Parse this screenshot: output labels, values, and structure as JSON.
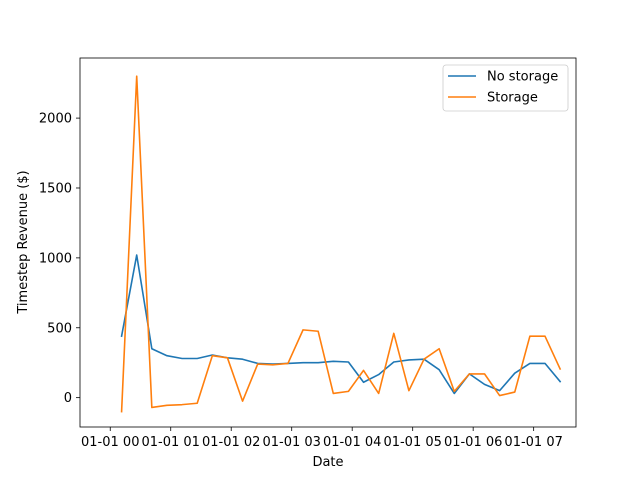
{
  "chart_data": {
    "type": "line",
    "title": "",
    "xlabel": "Date",
    "ylabel": "Timestep Revenue ($)",
    "ylim": [
      -210,
      2430
    ],
    "y_ticks": [
      0,
      500,
      1000,
      1500,
      2000
    ],
    "x_tick_labels": [
      "01-01 00",
      "01-01 01",
      "01-01 02",
      "01-01 03",
      "01-01 04",
      "01-01 05",
      "01-01 06",
      "01-01 07"
    ],
    "x_time_unit": "hours",
    "x": [
      "00:45",
      "01:45",
      "02:45",
      "03:45",
      "04:45",
      "05:45",
      "06:45",
      "07:45",
      "08:45",
      "09:45",
      "10:45",
      "11:45",
      "12:45",
      "13:45",
      "14:45",
      "15:45",
      "16:45",
      "17:45",
      "18:45",
      "19:45",
      "20:45",
      "21:45",
      "22:45",
      "23:45",
      "24:45",
      "25:45",
      "26:45",
      "27:45",
      "28:45",
      "29:45"
    ],
    "series": [
      {
        "name": "No storage",
        "color": "#1f77b4",
        "values": [
          440,
          1020,
          350,
          300,
          280,
          280,
          305,
          285,
          275,
          245,
          240,
          245,
          250,
          250,
          260,
          255,
          110,
          165,
          255,
          270,
          275,
          200,
          30,
          170,
          95,
          50,
          175,
          245,
          245,
          115
        ]
      },
      {
        "name": "Storage",
        "color": "#ff7f0e",
        "values": [
          -100,
          2300,
          -70,
          -55,
          -50,
          -40,
          300,
          285,
          -25,
          240,
          235,
          245,
          485,
          475,
          30,
          45,
          195,
          30,
          460,
          50,
          275,
          350,
          45,
          170,
          170,
          15,
          40,
          440,
          440,
          205
        ]
      }
    ],
    "legend_position": "upper right",
    "grid": false
  }
}
